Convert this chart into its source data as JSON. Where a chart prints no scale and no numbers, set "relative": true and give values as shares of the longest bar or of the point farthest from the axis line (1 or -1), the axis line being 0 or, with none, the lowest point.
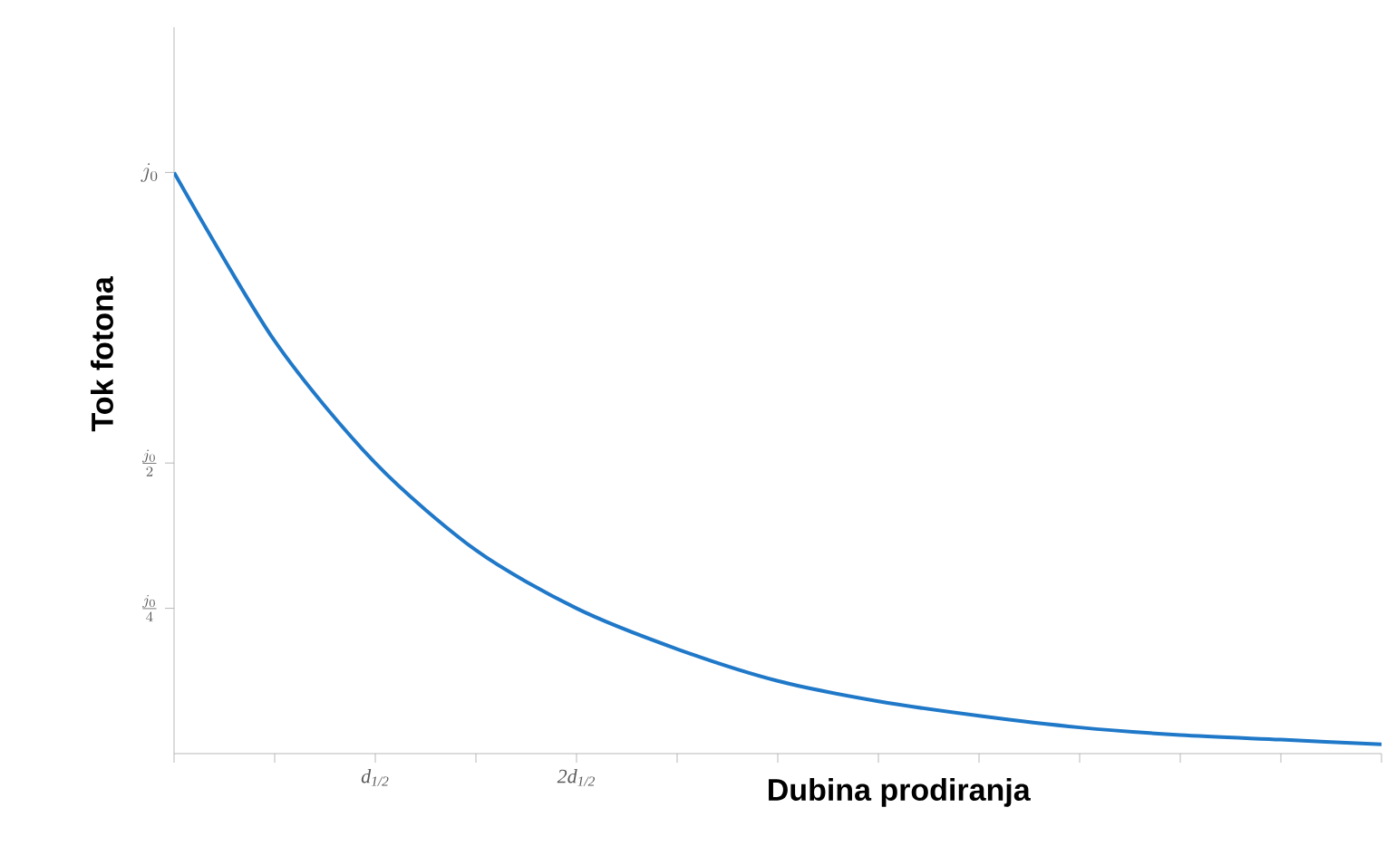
{
  "chart_data": {
    "type": "line",
    "xlabel": "Dubina prodiranja",
    "ylabel": "Tok fotona",
    "relative": true,
    "categories": [
      null,
      null,
      "d$_{1/2}$",
      null,
      "2d$_{1/2}$",
      null,
      null,
      null,
      null,
      null,
      null,
      null,
      null
    ],
    "series": [
      {
        "color": "#1f78c8",
        "values": [
          1,
          0.71,
          0.5,
          0.35,
          0.25,
          0.18,
          0.125,
          0.09,
          0.065,
          0.045,
          0.032,
          0.024,
          0.016
        ]
      }
    ],
    "annotations": [
      "j_0",
      "\\frac{j_0}{2}",
      "\\frac{j_0}{4}"
    ],
    "grid": false,
    "marker": "none",
    "line_style": "solid"
  }
}
